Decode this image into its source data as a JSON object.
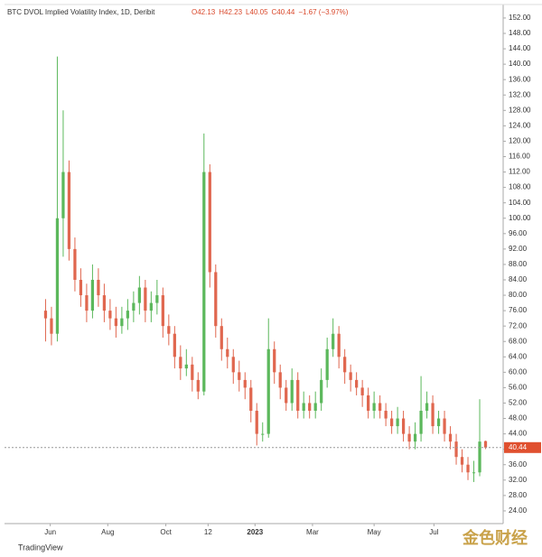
{
  "chart_data": {
    "type": "candlestick",
    "title": "BTC DVOL Implied Volatility Index, 1D, Deribit",
    "legend_values": [
      "O42.13",
      "H42.23",
      "L40.05",
      "C40.44",
      "−1.67 (−3.97%)"
    ],
    "branding": "TradingView",
    "watermark": "金色财经",
    "up_color": "#5cb85c",
    "down_color": "#e0674f",
    "last_price": 40.44,
    "last_price_color": "#e0502f",
    "open": [
      76,
      74,
      70,
      100,
      112,
      92,
      84,
      80,
      76,
      84,
      80,
      76,
      74,
      72,
      74,
      76,
      78,
      82,
      76,
      78,
      80,
      72,
      70,
      64,
      61,
      62,
      58,
      55,
      112,
      86,
      72,
      66,
      64,
      60,
      58,
      56,
      50,
      44,
      44,
      66,
      60,
      56,
      52,
      58,
      50,
      52,
      50,
      52,
      58,
      66,
      70,
      64,
      60,
      58,
      56,
      54,
      50,
      52,
      50,
      48,
      46,
      48,
      44,
      42,
      44,
      50,
      52,
      46,
      48,
      44,
      42,
      38,
      36,
      34,
      34,
      42.13
    ],
    "high": [
      79,
      77,
      142,
      128,
      115,
      95,
      87,
      83,
      88,
      87,
      83,
      79,
      77,
      77,
      79,
      81,
      85,
      84,
      81,
      84,
      82,
      75,
      72,
      67,
      66,
      64,
      60,
      122,
      114,
      88,
      74,
      69,
      66,
      63,
      60,
      58,
      52,
      47,
      74,
      68,
      62,
      58,
      61,
      60,
      55,
      54,
      55,
      61,
      69,
      74,
      72,
      66,
      62,
      60,
      58,
      56,
      55,
      54,
      52,
      50,
      51,
      50,
      46,
      47,
      59,
      55,
      54,
      50,
      50,
      46,
      44,
      40,
      38,
      37,
      53,
      42.23
    ],
    "low": [
      68,
      67,
      68,
      90,
      89,
      81,
      77,
      73,
      74,
      77,
      73,
      71,
      69,
      70,
      71,
      73,
      75,
      73,
      73,
      75,
      69,
      67,
      61,
      58,
      59,
      55,
      53,
      54,
      82,
      69,
      63,
      61,
      57,
      55,
      53,
      47,
      41,
      42,
      43,
      57,
      53,
      50,
      50,
      48,
      48,
      48,
      48,
      50,
      56,
      64,
      61,
      57,
      55,
      54,
      51,
      48,
      48,
      48,
      46,
      44,
      44,
      42,
      40,
      40,
      42,
      48,
      44,
      44,
      42,
      40,
      36,
      34,
      32,
      31.5,
      33,
      40.05
    ],
    "close": [
      74,
      70,
      100,
      112,
      92,
      84,
      80,
      76,
      84,
      80,
      76,
      74,
      72,
      74,
      76,
      78,
      82,
      76,
      78,
      80,
      72,
      70,
      64,
      61,
      62,
      58,
      55,
      112,
      86,
      72,
      66,
      64,
      60,
      58,
      56,
      50,
      44,
      44,
      66,
      60,
      56,
      52,
      58,
      50,
      52,
      50,
      52,
      58,
      66,
      70,
      64,
      60,
      58,
      56,
      54,
      50,
      52,
      50,
      48,
      46,
      48,
      44,
      42,
      44,
      50,
      52,
      46,
      48,
      44,
      42,
      38,
      36,
      34,
      34,
      42,
      40.44
    ],
    "xlim": [
      -7,
      78
    ],
    "xticks": [
      {
        "value": 0.8,
        "label": "Jun"
      },
      {
        "value": 10.6,
        "label": "Aug"
      },
      {
        "value": 20.5,
        "label": "Oct"
      },
      {
        "value": 27.7,
        "label": "12"
      },
      {
        "value": 35.7,
        "label": "2023"
      },
      {
        "value": 45.5,
        "label": "Mar"
      },
      {
        "value": 56,
        "label": "May"
      },
      {
        "value": 66.2,
        "label": "Jul"
      }
    ],
    "ylim": [
      20.7,
      155.5
    ],
    "yticks": [
      {
        "value": 24,
        "label": "24.00"
      },
      {
        "value": 28,
        "label": "28.00"
      },
      {
        "value": 32,
        "label": "32.00"
      },
      {
        "value": 36,
        "label": "36.00"
      },
      {
        "value": 40,
        "label": "40.00"
      },
      {
        "value": 44,
        "label": "44.00"
      },
      {
        "value": 48,
        "label": "48.00"
      },
      {
        "value": 52,
        "label": "52.00"
      },
      {
        "value": 56,
        "label": "56.00"
      },
      {
        "value": 60,
        "label": "60.00"
      },
      {
        "value": 64,
        "label": "64.00"
      },
      {
        "value": 68,
        "label": "68.00"
      },
      {
        "value": 72,
        "label": "72.00"
      },
      {
        "value": 76,
        "label": "76.00"
      },
      {
        "value": 80,
        "label": "80.00"
      },
      {
        "value": 84,
        "label": "84.00"
      },
      {
        "value": 88,
        "label": "88.00"
      },
      {
        "value": 92,
        "label": "92.00"
      },
      {
        "value": 96,
        "label": "96.00"
      },
      {
        "value": 100,
        "label": "100.00"
      },
      {
        "value": 104,
        "label": "104.00"
      },
      {
        "value": 108,
        "label": "108.00"
      },
      {
        "value": 112,
        "label": "112.00"
      },
      {
        "value": 116,
        "label": "116.00"
      },
      {
        "value": 120,
        "label": "120.00"
      },
      {
        "value": 124,
        "label": "124.00"
      },
      {
        "value": 128,
        "label": "128.00"
      },
      {
        "value": 132,
        "label": "132.00"
      },
      {
        "value": 136,
        "label": "136.00"
      },
      {
        "value": 140,
        "label": "140.00"
      },
      {
        "value": 144,
        "label": "144.00"
      },
      {
        "value": 148,
        "label": "148.00"
      },
      {
        "value": 152,
        "label": "152.00"
      }
    ],
    "grid": false
  }
}
